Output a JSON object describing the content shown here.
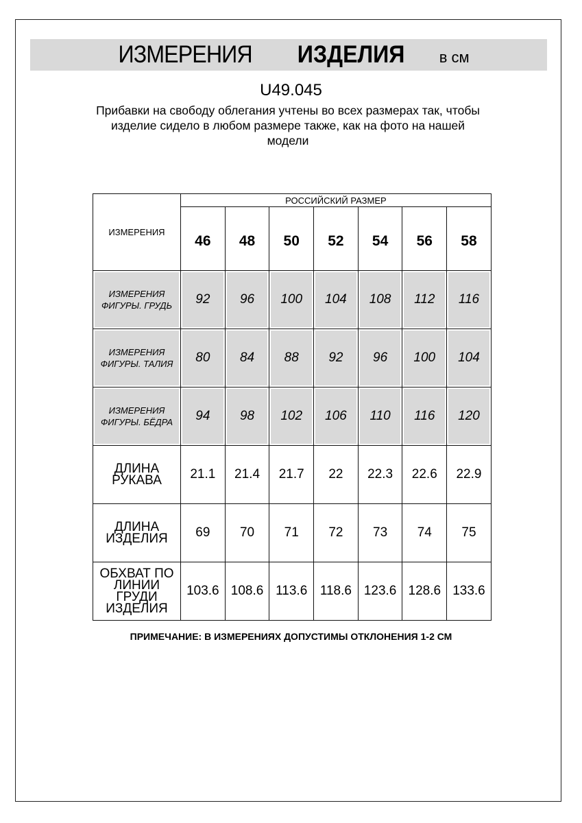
{
  "header": {
    "title_regular": "ИЗМЕРЕНИЯ",
    "title_bold": "ИЗДЕЛИЯ",
    "unit": "в см",
    "band_color": "#d9d9d9"
  },
  "article": "U49.045",
  "description": "Прибавки на свободу облегания учтены во всех размерах так, чтобы изделие сидело в любом размере также, как на фото на нашей модели",
  "table": {
    "corner_label": "ИЗМЕРЕНИЯ",
    "size_group_label": "РОССИЙСКИЙ РАЗМЕР",
    "sizes": [
      "46",
      "48",
      "50",
      "52",
      "54",
      "56",
      "58"
    ],
    "rows": [
      {
        "label": "ИЗМЕРЕНИЯ ФИГУРЫ. ГРУДЬ",
        "shaded": true,
        "values": [
          "92",
          "96",
          "100",
          "104",
          "108",
          "112",
          "116"
        ]
      },
      {
        "label": "ИЗМЕРЕНИЯ ФИГУРЫ. ТАЛИЯ",
        "shaded": true,
        "values": [
          "80",
          "84",
          "88",
          "92",
          "96",
          "100",
          "104"
        ]
      },
      {
        "label": "ИЗМЕРЕНИЯ ФИГУРЫ. БЁДРА",
        "shaded": true,
        "values": [
          "94",
          "98",
          "102",
          "106",
          "110",
          "116",
          "120"
        ]
      },
      {
        "label": "ДЛИНА РУКАВА",
        "shaded": false,
        "values": [
          "21.1",
          "21.4",
          "21.7",
          "22",
          "22.3",
          "22.6",
          "22.9"
        ]
      },
      {
        "label": "ДЛИНА ИЗДЕЛИЯ",
        "shaded": false,
        "values": [
          "69",
          "70",
          "71",
          "72",
          "73",
          "74",
          "75"
        ]
      },
      {
        "label": "ОБХВАТ ПО ЛИНИИ ГРУДИ ИЗДЕЛИЯ",
        "shaded": false,
        "values": [
          "103.6",
          "108.6",
          "113.6",
          "118.6",
          "123.6",
          "128.6",
          "133.6"
        ]
      }
    ]
  },
  "note": "ПРИМЕЧАНИЕ: В ИЗМЕРЕНИЯХ ДОПУСТИМЫ ОТКЛОНЕНИЯ 1-2 СМ"
}
